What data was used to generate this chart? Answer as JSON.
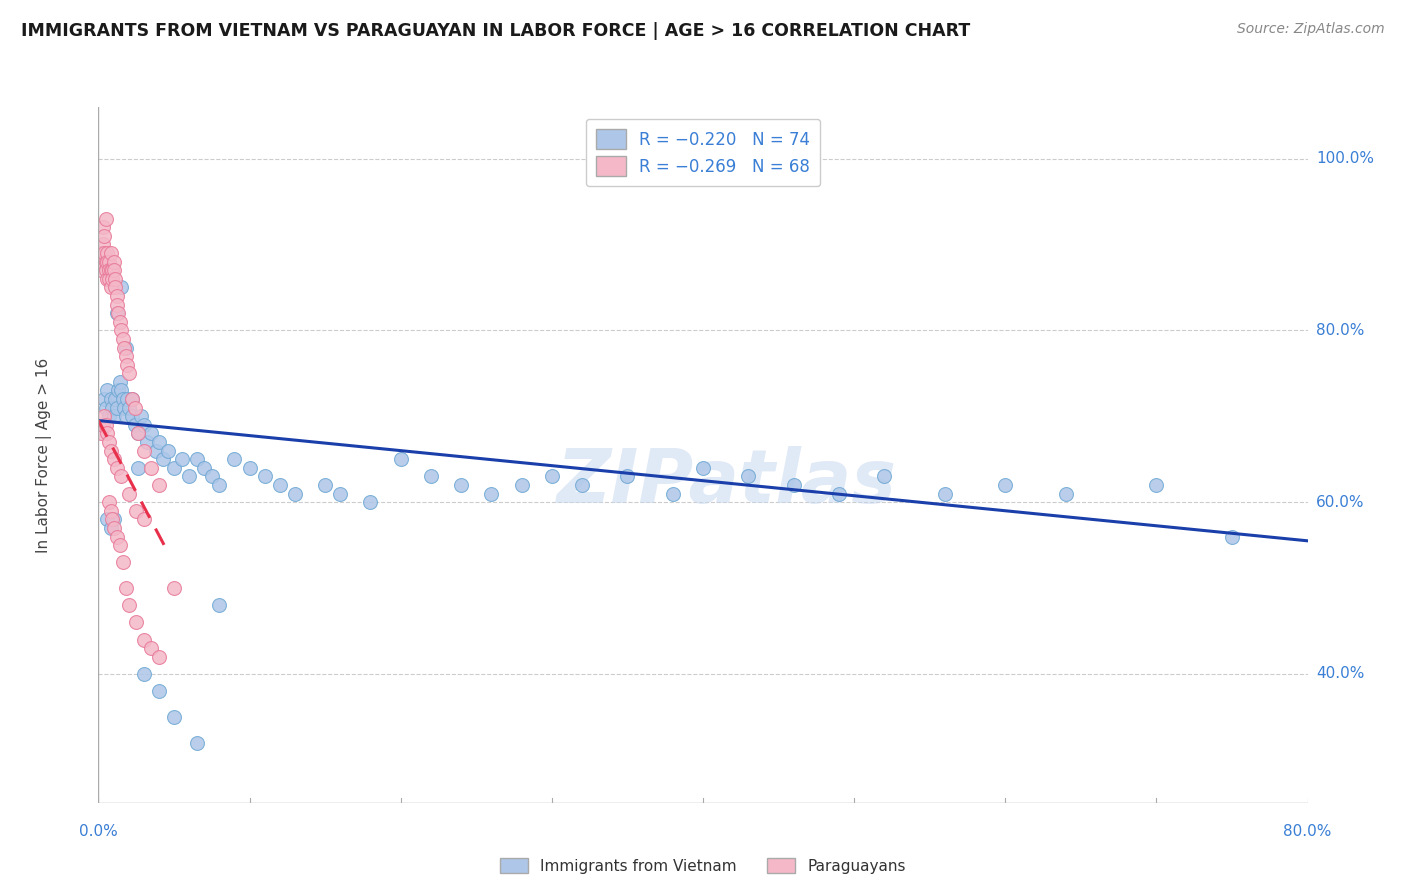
{
  "title": "IMMIGRANTS FROM VIETNAM VS PARAGUAYAN IN LABOR FORCE | AGE > 16 CORRELATION CHART",
  "source": "Source: ZipAtlas.com",
  "ylabel": "In Labor Force | Age > 16",
  "ytick_labels": [
    "100.0%",
    "80.0%",
    "60.0%",
    "40.0%"
  ],
  "ytick_values": [
    1.0,
    0.8,
    0.6,
    0.4
  ],
  "xlim": [
    0.0,
    0.8
  ],
  "ylim": [
    0.25,
    1.06
  ],
  "vietnam_color": "#aec6e8",
  "vietnam_edge": "#6fa8d4",
  "paraguay_color": "#f4b8c8",
  "paraguay_edge": "#e87898",
  "trendline_vietnam_color": "#1a3faa",
  "trendline_paraguay_color": "#e8304a",
  "watermark": "ZIPatlas",
  "watermark_color": "#c8d8f0",
  "vietnam_trend": [
    0.0,
    0.8,
    0.695,
    0.555
  ],
  "paraguay_trend": [
    0.0,
    0.045,
    0.695,
    0.545
  ],
  "vietnam_x": [
    0.004,
    0.005,
    0.006,
    0.007,
    0.008,
    0.009,
    0.01,
    0.011,
    0.012,
    0.013,
    0.014,
    0.015,
    0.016,
    0.017,
    0.018,
    0.019,
    0.02,
    0.022,
    0.024,
    0.026,
    0.028,
    0.03,
    0.032,
    0.035,
    0.038,
    0.04,
    0.043,
    0.046,
    0.05,
    0.055,
    0.06,
    0.065,
    0.07,
    0.075,
    0.08,
    0.09,
    0.1,
    0.11,
    0.12,
    0.13,
    0.15,
    0.16,
    0.18,
    0.2,
    0.22,
    0.24,
    0.26,
    0.28,
    0.3,
    0.32,
    0.35,
    0.38,
    0.4,
    0.43,
    0.46,
    0.49,
    0.52,
    0.56,
    0.6,
    0.64,
    0.7,
    0.75,
    0.006,
    0.008,
    0.01,
    0.012,
    0.015,
    0.018,
    0.022,
    0.026,
    0.03,
    0.04,
    0.05,
    0.065,
    0.08
  ],
  "vietnam_y": [
    0.72,
    0.71,
    0.73,
    0.7,
    0.72,
    0.71,
    0.7,
    0.72,
    0.71,
    0.73,
    0.74,
    0.73,
    0.72,
    0.71,
    0.7,
    0.72,
    0.71,
    0.7,
    0.69,
    0.68,
    0.7,
    0.69,
    0.67,
    0.68,
    0.66,
    0.67,
    0.65,
    0.66,
    0.64,
    0.65,
    0.63,
    0.65,
    0.64,
    0.63,
    0.62,
    0.65,
    0.64,
    0.63,
    0.62,
    0.61,
    0.62,
    0.61,
    0.6,
    0.65,
    0.63,
    0.62,
    0.61,
    0.62,
    0.63,
    0.62,
    0.63,
    0.61,
    0.64,
    0.63,
    0.62,
    0.61,
    0.63,
    0.61,
    0.62,
    0.61,
    0.62,
    0.56,
    0.58,
    0.57,
    0.58,
    0.82,
    0.85,
    0.78,
    0.72,
    0.64,
    0.4,
    0.38,
    0.35,
    0.32,
    0.48
  ],
  "paraguay_x": [
    0.002,
    0.002,
    0.003,
    0.003,
    0.003,
    0.004,
    0.004,
    0.005,
    0.005,
    0.005,
    0.006,
    0.006,
    0.006,
    0.007,
    0.007,
    0.007,
    0.008,
    0.008,
    0.008,
    0.009,
    0.009,
    0.01,
    0.01,
    0.011,
    0.011,
    0.012,
    0.012,
    0.013,
    0.014,
    0.015,
    0.016,
    0.017,
    0.018,
    0.019,
    0.02,
    0.022,
    0.024,
    0.026,
    0.03,
    0.035,
    0.04,
    0.002,
    0.003,
    0.004,
    0.005,
    0.006,
    0.007,
    0.008,
    0.01,
    0.012,
    0.015,
    0.02,
    0.025,
    0.03,
    0.007,
    0.008,
    0.009,
    0.01,
    0.012,
    0.014,
    0.016,
    0.018,
    0.02,
    0.025,
    0.03,
    0.035,
    0.04,
    0.05
  ],
  "paraguay_y": [
    0.89,
    0.87,
    0.9,
    0.88,
    0.92,
    0.91,
    0.89,
    0.88,
    0.87,
    0.93,
    0.89,
    0.88,
    0.86,
    0.88,
    0.87,
    0.86,
    0.89,
    0.87,
    0.85,
    0.87,
    0.86,
    0.88,
    0.87,
    0.86,
    0.85,
    0.84,
    0.83,
    0.82,
    0.81,
    0.8,
    0.79,
    0.78,
    0.77,
    0.76,
    0.75,
    0.72,
    0.71,
    0.68,
    0.66,
    0.64,
    0.62,
    0.68,
    0.69,
    0.7,
    0.69,
    0.68,
    0.67,
    0.66,
    0.65,
    0.64,
    0.63,
    0.61,
    0.59,
    0.58,
    0.6,
    0.59,
    0.58,
    0.57,
    0.56,
    0.55,
    0.53,
    0.5,
    0.48,
    0.46,
    0.44,
    0.43,
    0.42,
    0.5
  ]
}
